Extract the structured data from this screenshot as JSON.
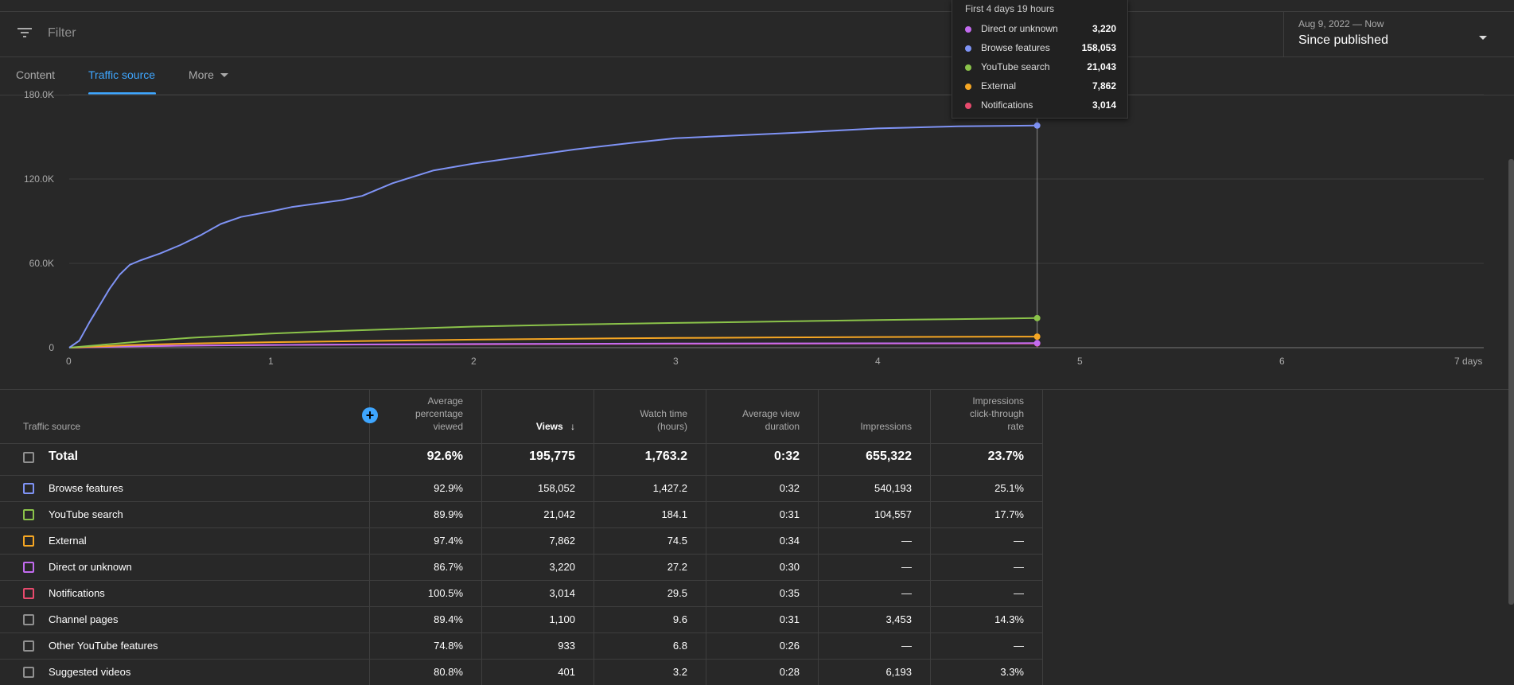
{
  "filter": {
    "placeholder": "Filter",
    "icon": "filter-icon"
  },
  "date_range": {
    "label": "Aug 9, 2022 — Now",
    "value": "Since published",
    "icon": "chevron-down-icon"
  },
  "tabs": [
    {
      "label": "Content",
      "active": false
    },
    {
      "label": "Traffic source",
      "active": true
    },
    {
      "label": "More",
      "active": false
    }
  ],
  "tooltip": {
    "title": "First 4 days 19 hours",
    "rows": [
      {
        "label": "Direct or unknown",
        "value": "3,220",
        "color": "#c36bf0"
      },
      {
        "label": "Browse features",
        "value": "158,053",
        "color": "#7f93f5"
      },
      {
        "label": "YouTube search",
        "value": "21,043",
        "color": "#8bc34a"
      },
      {
        "label": "External",
        "value": "7,862",
        "color": "#f5a623"
      },
      {
        "label": "Notifications",
        "value": "3,014",
        "color": "#e84a6d"
      }
    ]
  },
  "chart_data": {
    "type": "line",
    "x_unit": "days",
    "x_tick_labels": [
      "0",
      "1",
      "2",
      "3",
      "4",
      "5",
      "6",
      "7 days"
    ],
    "y_tick_labels": [
      "0",
      "60.0K",
      "120.0K",
      "180.0K"
    ],
    "ylim": [
      0,
      180000
    ],
    "xlim": [
      0,
      7
    ],
    "grid": true,
    "hover_x": 4.79,
    "series": [
      {
        "name": "Browse features",
        "color": "#7f93f5",
        "x": [
          0,
          0.05,
          0.1,
          0.15,
          0.2,
          0.25,
          0.3,
          0.35,
          0.45,
          0.55,
          0.65,
          0.75,
          0.85,
          1.0,
          1.1,
          1.2,
          1.35,
          1.45,
          1.6,
          1.8,
          2.0,
          2.2,
          2.5,
          2.8,
          3.0,
          3.3,
          3.6,
          4.0,
          4.4,
          4.79
        ],
        "y": [
          0,
          5000,
          18000,
          30000,
          42000,
          52000,
          59000,
          62000,
          67000,
          73000,
          80000,
          88000,
          93000,
          97000,
          100000,
          102000,
          105000,
          108000,
          117000,
          126000,
          131000,
          135000,
          141000,
          146000,
          149000,
          151000,
          153000,
          156000,
          157500,
          158053
        ]
      },
      {
        "name": "YouTube search",
        "color": "#8bc34a",
        "x": [
          0,
          0.2,
          0.4,
          0.6,
          0.8,
          1.0,
          1.3,
          1.6,
          2.0,
          2.5,
          3.0,
          3.5,
          4.0,
          4.4,
          4.79
        ],
        "y": [
          0,
          2500,
          5000,
          7000,
          8500,
          10000,
          11800,
          13200,
          15000,
          16500,
          17600,
          18600,
          19700,
          20300,
          21043
        ]
      },
      {
        "name": "External",
        "color": "#f5a623",
        "x": [
          0,
          0.3,
          0.6,
          1.0,
          1.5,
          2.0,
          2.5,
          3.0,
          3.5,
          4.0,
          4.79
        ],
        "y": [
          0,
          1800,
          3000,
          3900,
          4800,
          5700,
          6400,
          6900,
          7300,
          7600,
          7862
        ]
      },
      {
        "name": "Direct or unknown",
        "color": "#c36bf0",
        "x": [
          0,
          0.3,
          0.6,
          1.0,
          1.5,
          2.0,
          2.5,
          3.0,
          3.5,
          4.0,
          4.79
        ],
        "y": [
          0,
          900,
          1500,
          1900,
          2300,
          2600,
          2800,
          2950,
          3050,
          3130,
          3220
        ]
      },
      {
        "name": "Notifications",
        "color": "#e84a6d",
        "x": [
          0,
          0.3,
          0.6,
          1.0,
          1.5,
          2.0,
          2.5,
          3.0,
          3.5,
          4.0,
          4.79
        ],
        "y": [
          0,
          1000,
          1600,
          1950,
          2250,
          2450,
          2600,
          2750,
          2850,
          2950,
          3014
        ]
      }
    ]
  },
  "table": {
    "headers": {
      "source": "Traffic source",
      "avg_pct_1": "Average",
      "avg_pct_2": "percentage",
      "avg_pct_3": "viewed",
      "views": "Views",
      "watch_1": "Watch time",
      "watch_2": "(hours)",
      "avd_1": "Average view",
      "avd_2": "duration",
      "impressions": "Impressions",
      "ctr_1": "Impressions",
      "ctr_2": "click-through",
      "ctr_3": "rate"
    },
    "add_column_label": "+",
    "total": {
      "name": "Total",
      "avg_pct": "92.6%",
      "views": "195,775",
      "watch": "1,763.2",
      "avd": "0:32",
      "impressions": "655,322",
      "ctr": "23.7%"
    },
    "rows": [
      {
        "name": "Browse features",
        "color": "#7f93f5",
        "avg_pct": "92.9%",
        "views": "158,052",
        "watch": "1,427.2",
        "avd": "0:32",
        "impressions": "540,193",
        "ctr": "25.1%"
      },
      {
        "name": "YouTube search",
        "color": "#8bc34a",
        "avg_pct": "89.9%",
        "views": "21,042",
        "watch": "184.1",
        "avd": "0:31",
        "impressions": "104,557",
        "ctr": "17.7%"
      },
      {
        "name": "External",
        "color": "#f5a623",
        "avg_pct": "97.4%",
        "views": "7,862",
        "watch": "74.5",
        "avd": "0:34",
        "impressions": "—",
        "ctr": "—"
      },
      {
        "name": "Direct or unknown",
        "color": "#c36bf0",
        "avg_pct": "86.7%",
        "views": "3,220",
        "watch": "27.2",
        "avd": "0:30",
        "impressions": "—",
        "ctr": "—"
      },
      {
        "name": "Notifications",
        "color": "#e84a6d",
        "avg_pct": "100.5%",
        "views": "3,014",
        "watch": "29.5",
        "avd": "0:35",
        "impressions": "—",
        "ctr": "—"
      },
      {
        "name": "Channel pages",
        "color": "#909090",
        "avg_pct": "89.4%",
        "views": "1,100",
        "watch": "9.6",
        "avd": "0:31",
        "impressions": "3,453",
        "ctr": "14.3%"
      },
      {
        "name": "Other YouTube features",
        "color": "#909090",
        "avg_pct": "74.8%",
        "views": "933",
        "watch": "6.8",
        "avd": "0:26",
        "impressions": "—",
        "ctr": "—"
      },
      {
        "name": "Suggested videos",
        "color": "#909090",
        "avg_pct": "80.8%",
        "views": "401",
        "watch": "3.2",
        "avd": "0:28",
        "impressions": "6,193",
        "ctr": "3.3%"
      }
    ]
  }
}
